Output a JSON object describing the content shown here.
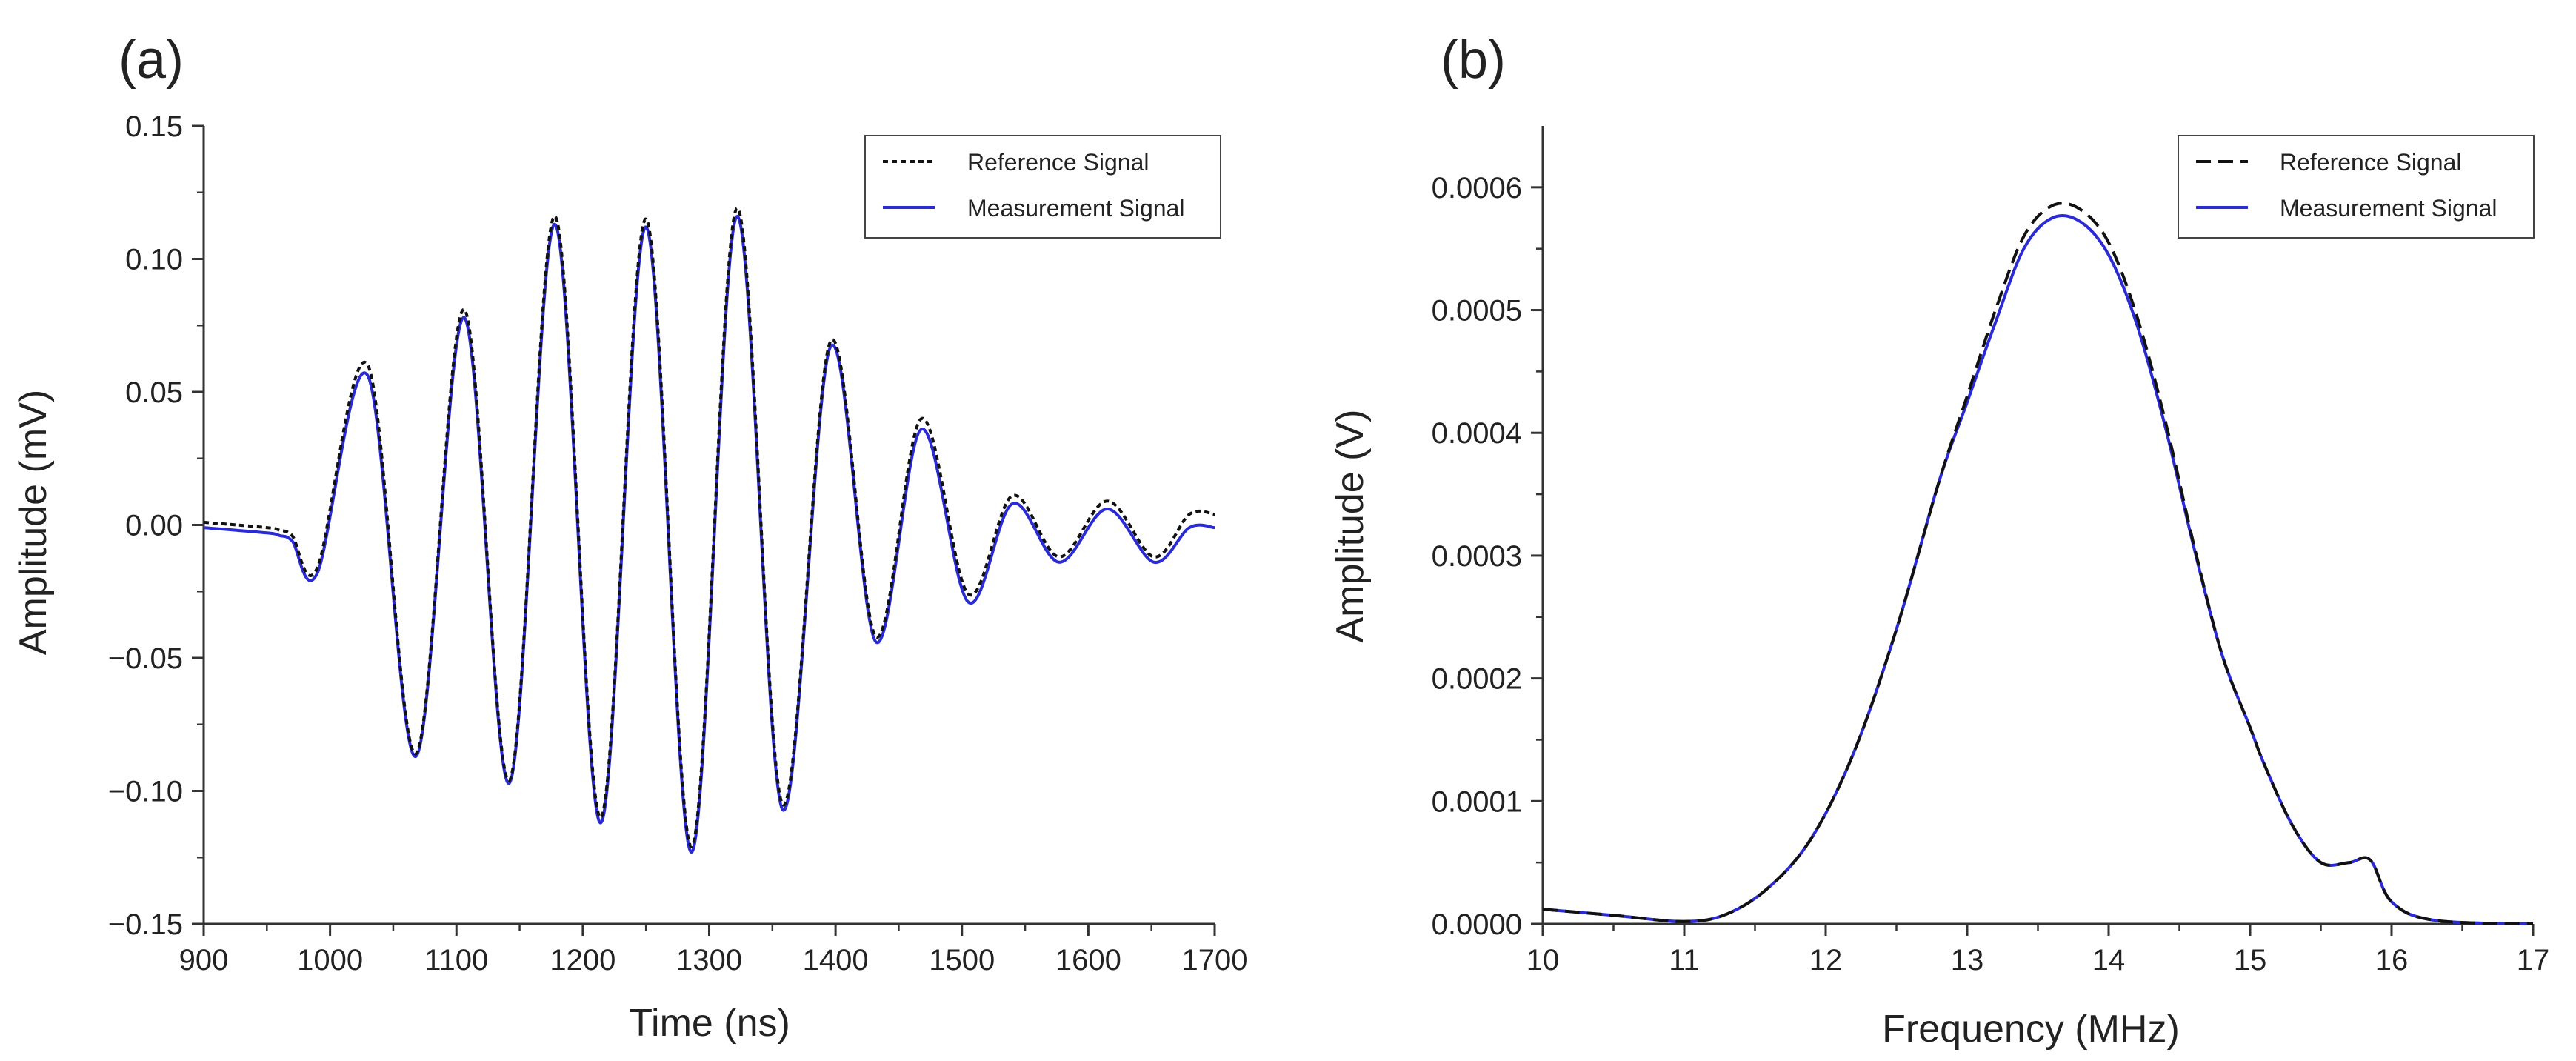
{
  "chart_data": [
    {
      "type": "line",
      "panel_label": "(a)",
      "title": "",
      "xlabel": "Time (ns)",
      "ylabel": "Amplitude (mV)",
      "xlim": [
        900,
        1700
      ],
      "ylim": [
        -0.15,
        0.15
      ],
      "x_ticks": [
        900,
        1000,
        1100,
        1200,
        1300,
        1400,
        1500,
        1600,
        1700
      ],
      "x_tick_labels": [
        "900",
        "1000",
        "1100",
        "1200",
        "1300",
        "1400",
        "1500",
        "1600",
        "1700"
      ],
      "y_ticks": [
        -0.15,
        -0.1,
        -0.05,
        0.0,
        0.05,
        0.1,
        0.15
      ],
      "y_tick_labels": [
        "−0.15",
        "−0.10",
        "−0.05",
        "0.00",
        "0.05",
        "0.10",
        "0.15"
      ],
      "legend_position": "top-right",
      "grid": false,
      "series": [
        {
          "name": "Reference Signal",
          "style": "dotted",
          "color": "#111111",
          "x": [
            900,
            950,
            960,
            970,
            990,
            1030,
            1068,
            1106,
            1142,
            1178,
            1214,
            1250,
            1286,
            1322,
            1358,
            1396,
            1432,
            1468,
            1505,
            1540,
            1577,
            1615,
            1652,
            1680,
            1700
          ],
          "y": [
            0.001,
            -0.001,
            -0.002,
            -0.004,
            -0.016,
            0.06,
            -0.086,
            0.081,
            -0.096,
            0.116,
            -0.11,
            0.115,
            -0.121,
            0.119,
            -0.105,
            0.069,
            -0.042,
            0.04,
            -0.026,
            0.011,
            -0.012,
            0.009,
            -0.012,
            0.004,
            0.004
          ]
        },
        {
          "name": "Measurement Signal",
          "style": "solid",
          "color": "#2b2bd6",
          "x": [
            900,
            950,
            960,
            970,
            990,
            1030,
            1068,
            1106,
            1142,
            1178,
            1214,
            1250,
            1286,
            1322,
            1358,
            1396,
            1432,
            1468,
            1505,
            1540,
            1577,
            1615,
            1652,
            1680,
            1700
          ],
          "y": [
            -0.001,
            -0.003,
            -0.004,
            -0.006,
            -0.018,
            0.056,
            -0.087,
            0.078,
            -0.097,
            0.113,
            -0.112,
            0.112,
            -0.123,
            0.116,
            -0.107,
            0.067,
            -0.044,
            0.036,
            -0.029,
            0.008,
            -0.014,
            0.006,
            -0.014,
            -0.001,
            -0.001
          ]
        }
      ]
    },
    {
      "type": "line",
      "panel_label": "(b)",
      "title": "",
      "xlabel": "Frequency (MHz)",
      "ylabel": "Amplitude (V)",
      "xlim": [
        10,
        17
      ],
      "ylim": [
        0,
        0.00065
      ],
      "x_ticks": [
        10,
        11,
        12,
        13,
        14,
        15,
        16,
        17
      ],
      "x_tick_labels": [
        "10",
        "11",
        "12",
        "13",
        "14",
        "15",
        "16",
        "17"
      ],
      "y_ticks": [
        0,
        0.0001,
        0.0002,
        0.0003,
        0.0004,
        0.0005,
        0.0006
      ],
      "y_tick_labels": [
        "0.0000",
        "0.0001",
        "0.0002",
        "0.0003",
        "0.0004",
        "0.0005",
        "0.0006"
      ],
      "legend_position": "top-right",
      "grid": false,
      "series": [
        {
          "name": "Reference Signal",
          "style": "dashed",
          "color": "#111111",
          "x": [
            10,
            10.5,
            11,
            11.3,
            11.6,
            11.9,
            12.2,
            12.5,
            12.8,
            13.0,
            13.2,
            13.4,
            13.6,
            13.8,
            14.0,
            14.2,
            14.4,
            14.6,
            14.8,
            15.0,
            15.1,
            15.3,
            15.5,
            15.7,
            15.85,
            16.0,
            16.3,
            17.0
          ],
          "y": [
            1.2e-05,
            7e-06,
            2e-06,
            8e-06,
            3e-05,
            7e-05,
            0.00014,
            0.00024,
            0.00036,
            0.00043,
            0.0005,
            0.00056,
            0.000585,
            0.000582,
            0.000555,
            0.000495,
            0.00041,
            0.00031,
            0.00022,
            0.00016,
            0.00013,
            8e-05,
            5e-05,
            5e-05,
            5.2e-05,
            1.8e-05,
            3e-06,
            0.0
          ]
        },
        {
          "name": "Measurement Signal",
          "style": "solid",
          "color": "#2b2bd6",
          "x": [
            10,
            10.5,
            11,
            11.3,
            11.6,
            11.9,
            12.2,
            12.5,
            12.8,
            13.0,
            13.2,
            13.4,
            13.6,
            13.8,
            14.0,
            14.2,
            14.4,
            14.6,
            14.8,
            15.0,
            15.1,
            15.3,
            15.5,
            15.7,
            15.85,
            16.0,
            16.3,
            17.0
          ],
          "y": [
            1.2e-05,
            7e-06,
            2e-06,
            8e-06,
            3e-05,
            7e-05,
            0.00014,
            0.00024,
            0.00036,
            0.000425,
            0.00049,
            0.00055,
            0.000575,
            0.000572,
            0.000545,
            0.000488,
            0.000405,
            0.000308,
            0.00022,
            0.00016,
            0.00013,
            8e-05,
            5e-05,
            5e-05,
            5.2e-05,
            1.8e-05,
            3e-06,
            0.0
          ]
        }
      ]
    }
  ]
}
